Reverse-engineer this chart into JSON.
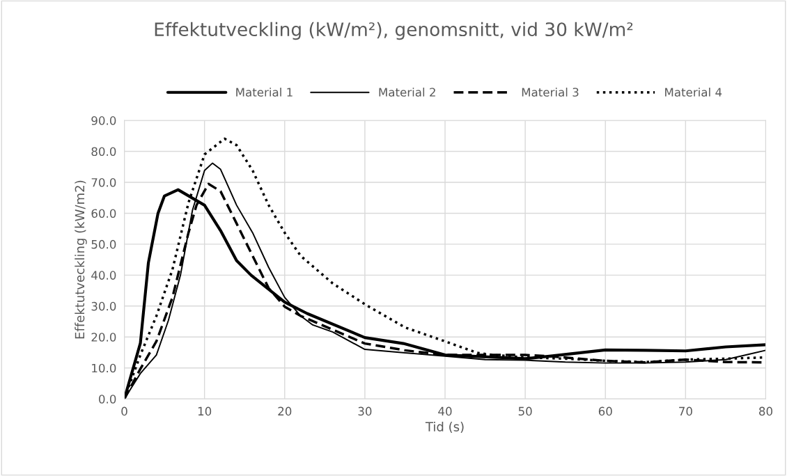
{
  "chart_data": {
    "type": "line",
    "title": "Effektutveckling (kW/m²), genomsnitt, vid 30 kW/m²",
    "xlabel": "Tid (s)",
    "ylabel": "Effektutveckling (kW/m2)",
    "xlim": [
      0,
      80
    ],
    "xticks": [
      0,
      10,
      20,
      30,
      40,
      50,
      60,
      70,
      80
    ],
    "ylim": [
      0,
      90
    ],
    "yticks": [
      {
        "value": 0,
        "label": "0.0"
      },
      {
        "value": 10,
        "label": "10.0"
      },
      {
        "value": 20,
        "label": "20.0"
      },
      {
        "value": 30,
        "label": "30.0"
      },
      {
        "value": 40,
        "label": "40.0"
      },
      {
        "value": 50,
        "label": "50.0"
      },
      {
        "value": 60,
        "label": "60.0"
      },
      {
        "value": 70,
        "label": "70.0"
      },
      {
        "value": 80,
        "label": "80.0"
      },
      {
        "value": 90,
        "label": "90.0"
      }
    ],
    "grid": true,
    "legend": "top",
    "marker": "none",
    "series": [
      {
        "name": "Material 1",
        "color": "#000000",
        "line_style": "solid",
        "x": [
          0,
          2,
          3,
          4.2,
          5,
          6.7,
          10,
          12,
          14,
          15.8,
          20,
          22.8,
          30,
          34.8,
          40,
          50,
          53,
          60,
          65,
          70,
          75,
          80
        ],
        "values": [
          0,
          18,
          44,
          60,
          65.6,
          67.6,
          62.6,
          54.4,
          44.7,
          40,
          31.3,
          27.6,
          19.8,
          17.9,
          14.2,
          13,
          13.8,
          15.8,
          15.7,
          15.5,
          16.8,
          17.5
        ]
      },
      {
        "name": "Material 2",
        "color": "#000000",
        "line_style": "solid",
        "x": [
          0,
          2,
          4,
          5.5,
          7,
          8.5,
          10,
          11,
          12,
          14,
          16,
          18,
          20,
          22,
          23.5,
          26,
          30,
          35,
          40,
          45,
          50,
          55,
          60,
          65,
          70,
          75,
          78,
          80
        ],
        "values": [
          0,
          8.2,
          14.2,
          25.4,
          40,
          61,
          73.8,
          76.2,
          74.2,
          62.6,
          53.7,
          42.5,
          32.8,
          26.8,
          23.9,
          21.6,
          16,
          14.9,
          13.8,
          12.7,
          12.5,
          11.9,
          11.6,
          11.6,
          11.9,
          12.7,
          14.5,
          15.7
        ]
      },
      {
        "name": "Material 3",
        "color": "#000000",
        "line_style": "dashed",
        "x": [
          0,
          2,
          4,
          6,
          8,
          9,
          10.5,
          12,
          14,
          16,
          18,
          20,
          22,
          30,
          35,
          40,
          45,
          50,
          53,
          60,
          65,
          70,
          75,
          80
        ],
        "values": [
          0,
          9.7,
          18.6,
          32.8,
          53.7,
          62.6,
          69.5,
          67.1,
          56.7,
          46.2,
          35.8,
          29.8,
          26.8,
          17.9,
          15.7,
          14.2,
          14.2,
          14.2,
          13.8,
          12.3,
          11.8,
          12.7,
          11.9,
          11.8
        ]
      },
      {
        "name": "Material 4",
        "color": "#000000",
        "line_style": "dotted",
        "x": [
          0,
          2,
          4,
          6,
          8,
          10,
          12.5,
          14,
          16,
          18,
          20,
          22,
          26,
          30,
          35,
          40,
          44,
          46,
          50,
          55,
          60,
          65,
          70,
          75,
          80
        ],
        "values": [
          0,
          14.2,
          26.8,
          41.8,
          63.4,
          79,
          84.1,
          82,
          73.8,
          62.6,
          53.7,
          46.2,
          37.3,
          30.6,
          23.1,
          18.6,
          14.9,
          14.2,
          13.4,
          13,
          12.3,
          11.9,
          12.7,
          13,
          13.4
        ]
      }
    ]
  }
}
